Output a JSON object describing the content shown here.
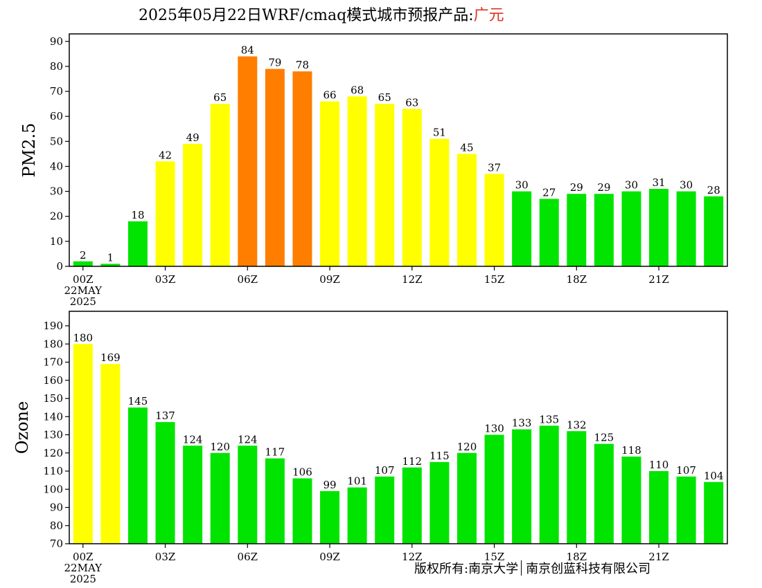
{
  "header": {
    "title_prefix": "2025年05月22日WRF/cmaq模式城市预报产品:",
    "city": "广元"
  },
  "footer": {
    "copyright_left": "版权所有:南京大学",
    "copyright_right": "南京创蓝科技有限公司"
  },
  "colors": {
    "good": "#00e400",
    "moderate": "#ffff00",
    "usg": "#ff7e00"
  },
  "chart_data": [
    {
      "type": "bar",
      "ylabel": "PM2.5",
      "ylim": [
        0,
        93
      ],
      "yticks": [
        0,
        10,
        20,
        30,
        40,
        50,
        60,
        70,
        80,
        90
      ],
      "xticks": [
        {
          "index": 0,
          "label": "00Z",
          "label2": "22MAY",
          "label3": "2025"
        },
        {
          "index": 3,
          "label": "03Z"
        },
        {
          "index": 6,
          "label": "06Z"
        },
        {
          "index": 9,
          "label": "09Z"
        },
        {
          "index": 12,
          "label": "12Z"
        },
        {
          "index": 15,
          "label": "15Z"
        },
        {
          "index": 18,
          "label": "18Z"
        },
        {
          "index": 21,
          "label": "21Z"
        }
      ],
      "values": [
        2,
        1,
        18,
        42,
        49,
        65,
        84,
        79,
        78,
        66,
        68,
        65,
        63,
        51,
        45,
        37,
        30,
        27,
        29,
        29,
        30,
        31,
        30,
        28
      ],
      "colors": [
        "good",
        "good",
        "good",
        "moderate",
        "moderate",
        "moderate",
        "usg",
        "usg",
        "usg",
        "moderate",
        "moderate",
        "moderate",
        "moderate",
        "moderate",
        "moderate",
        "moderate",
        "good",
        "good",
        "good",
        "good",
        "good",
        "good",
        "good",
        "good"
      ]
    },
    {
      "type": "bar",
      "ylabel": "Ozone",
      "ylim": [
        70,
        198
      ],
      "yticks": [
        70,
        80,
        90,
        100,
        110,
        120,
        130,
        140,
        150,
        160,
        170,
        180,
        190
      ],
      "xticks": [
        {
          "index": 0,
          "label": "00Z",
          "label2": "22MAY",
          "label3": "2025"
        },
        {
          "index": 3,
          "label": "03Z"
        },
        {
          "index": 6,
          "label": "06Z"
        },
        {
          "index": 9,
          "label": "09Z"
        },
        {
          "index": 12,
          "label": "12Z"
        },
        {
          "index": 15,
          "label": "15Z"
        },
        {
          "index": 18,
          "label": "18Z"
        },
        {
          "index": 21,
          "label": "21Z"
        }
      ],
      "values": [
        180,
        169,
        145,
        137,
        124,
        120,
        124,
        117,
        106,
        99,
        101,
        107,
        112,
        115,
        120,
        130,
        133,
        135,
        132,
        125,
        118,
        110,
        107,
        104
      ],
      "colors": [
        "moderate",
        "moderate",
        "good",
        "good",
        "good",
        "good",
        "good",
        "good",
        "good",
        "good",
        "good",
        "good",
        "good",
        "good",
        "good",
        "good",
        "good",
        "good",
        "good",
        "good",
        "good",
        "good",
        "good",
        "good"
      ]
    }
  ]
}
